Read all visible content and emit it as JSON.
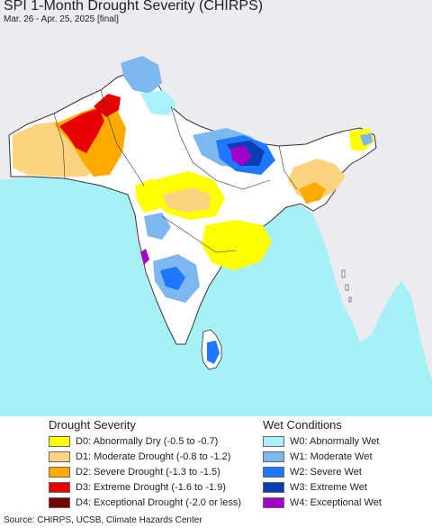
{
  "title": "SPI 1-Month Drought Severity (CHIRPS)",
  "subtitle": "Mar. 26 - Apr. 25, 2025 [final]",
  "legend": {
    "drought_title": "Drought Severity",
    "drought_items": [
      {
        "label": "D0: Abnormally Dry (-0.5 to -0.7)",
        "color": "#ffff00"
      },
      {
        "label": "D1: Moderate Drought (-0.8 to -1.2)",
        "color": "#fcd37f"
      },
      {
        "label": "D2: Severe Drought (-1.3 to -1.5)",
        "color": "#ffaa00"
      },
      {
        "label": "D3: Extreme Drought (-1.6 to -1.9)",
        "color": "#e60000"
      },
      {
        "label": "D4: Exceptional Drought (-2.0 or less)",
        "color": "#730000"
      }
    ],
    "wet_title": "Wet Conditions",
    "wet_items": [
      {
        "label": "W0: Abnormally Wet",
        "color": "#aaf0ff"
      },
      {
        "label": "W1: Moderate Wet",
        "color": "#7eb6f0"
      },
      {
        "label": "W2: Severe Wet",
        "color": "#1e78ff"
      },
      {
        "label": "W3: Extreme Wet",
        "color": "#0a3cb4"
      },
      {
        "label": "W4: Exceptional Wet",
        "color": "#a000c8"
      }
    ]
  },
  "source": "Source: CHIRPS, UCSB, Climate Hazards Center",
  "colors": {
    "ocean": "#a6f0f8",
    "land_outside": "#ecebf0",
    "land_normal": "#ffffff",
    "border": "#333333"
  }
}
